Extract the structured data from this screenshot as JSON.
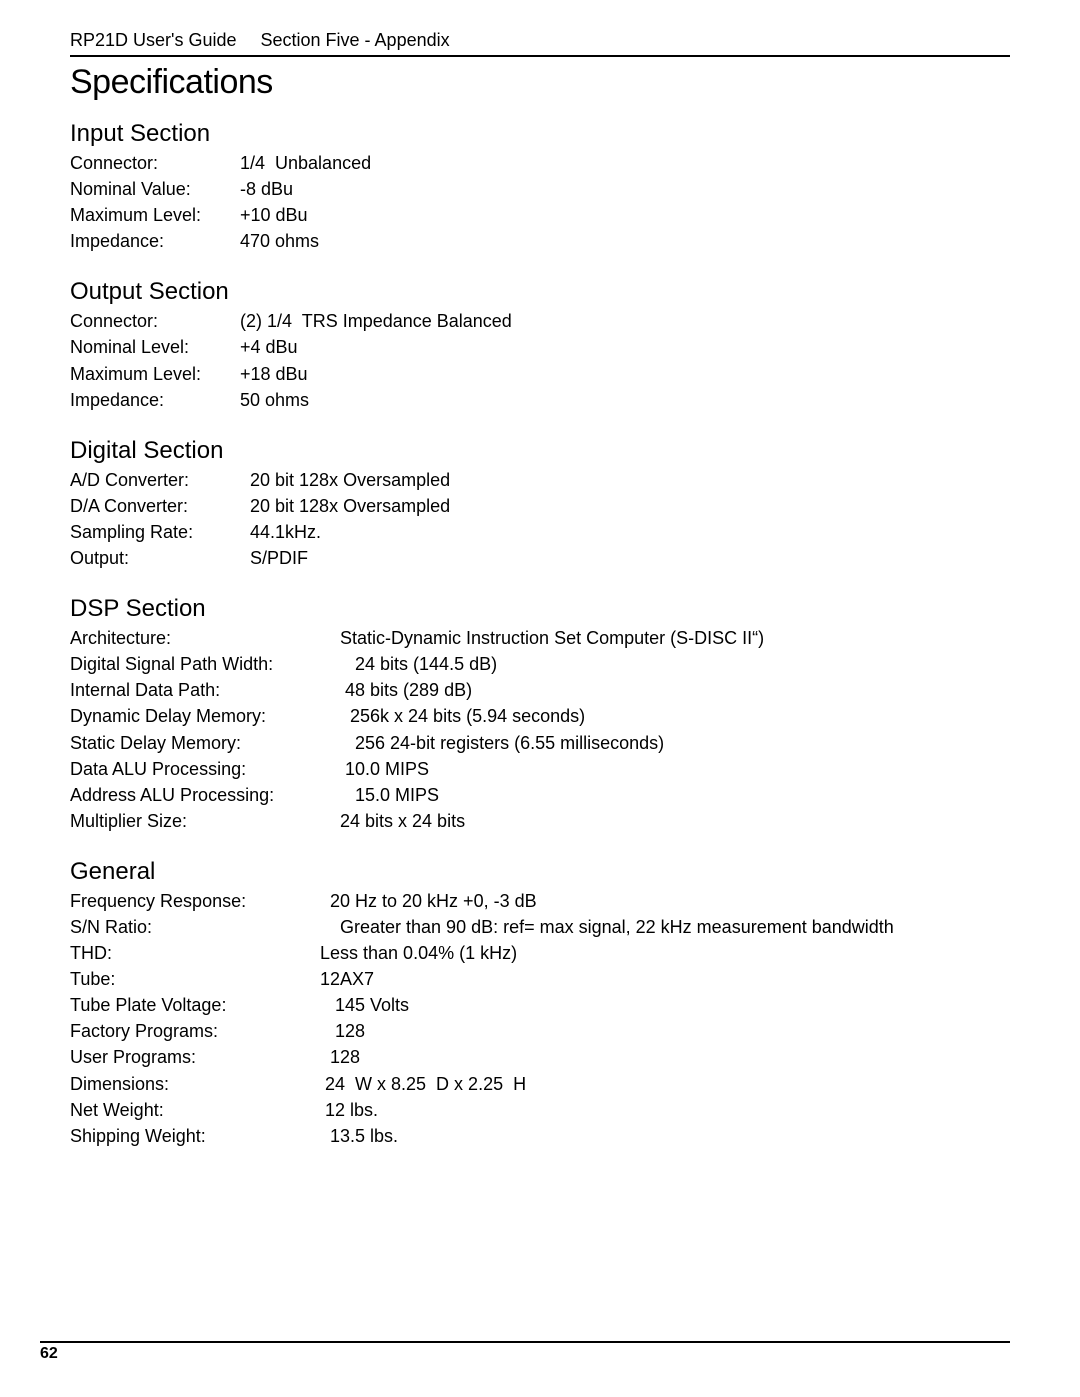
{
  "header": {
    "left": "RP21D User's Guide",
    "right": "Section Five - Appendix"
  },
  "title": "Specifications",
  "sections": [
    {
      "heading": "Input Section",
      "colsClass": "cols-input",
      "rows": [
        {
          "label": "Connector:",
          "value": "1/4  Unbalanced"
        },
        {
          "label": "Nominal Value:",
          "value": "-8 dBu"
        },
        {
          "label": "Maximum Level:",
          "value": "+10 dBu"
        },
        {
          "label": "Impedance:",
          "value": "470 ohms"
        }
      ]
    },
    {
      "heading": "Output Section",
      "colsClass": "cols-output",
      "rows": [
        {
          "label": "Connector:",
          "value": "(2) 1/4  TRS Impedance Balanced"
        },
        {
          "label": "Nominal Level:",
          "value": "+4 dBu"
        },
        {
          "label": "Maximum Level:",
          "value": "+18 dBu"
        },
        {
          "label": "Impedance:",
          "value": "50 ohms"
        }
      ]
    },
    {
      "heading": "Digital Section",
      "colsClass": "cols-digital",
      "rows": [
        {
          "label": "A/D Converter:",
          "value": "20 bit 128x Oversampled"
        },
        {
          "label": "D/A Converter:",
          "value": "20 bit 128x Oversampled"
        },
        {
          "label": "Sampling Rate:",
          "value": "44.1kHz."
        },
        {
          "label": "Output:",
          "value": "S/PDIF"
        }
      ]
    },
    {
      "heading": "DSP Section",
      "colsClass": "cols-dsp",
      "rows": [
        {
          "label": "Architecture:",
          "value": "Static-Dynamic Instruction Set Computer (S-DISC II“)"
        },
        {
          "label": "Digital Signal Path Width:",
          "value": "   24 bits (144.5 dB)"
        },
        {
          "label": "Internal Data Path:",
          "value": " 48 bits (289 dB)"
        },
        {
          "label": "Dynamic Delay Memory:",
          "value": "  256k x 24 bits (5.94 seconds)"
        },
        {
          "label": "Static Delay Memory:",
          "value": "   256 24-bit registers (6.55 milliseconds)"
        },
        {
          "label": "Data ALU Processing:",
          "value": " 10.0 MIPS"
        },
        {
          "label": "Address ALU Processing:",
          "value": "   15.0 MIPS"
        },
        {
          "label": "Multiplier Size:",
          "value": "24 bits x 24 bits"
        }
      ]
    },
    {
      "heading": "General",
      "colsClass": "cols-general",
      "rows": [
        {
          "label": "Frequency Response:",
          "value": "  20 Hz to 20 kHz +0, -3 dB"
        },
        {
          "label": "S/N Ratio:",
          "value": "    Greater than 90 dB: ref= max signal, 22 kHz measurement bandwidth"
        },
        {
          "label": "THD:",
          "value": "Less than 0.04% (1 kHz)"
        },
        {
          "label": "Tube:",
          "value": "12AX7"
        },
        {
          "label": "Tube Plate Voltage:",
          "value": "   145 Volts"
        },
        {
          "label": "Factory Programs:",
          "value": "   128"
        },
        {
          "label": "User Programs:",
          "value": "  128"
        },
        {
          "label": "Dimensions:",
          "value": " 24  W x 8.25  D x 2.25  H"
        },
        {
          "label": "Net Weight:",
          "value": " 12 lbs."
        },
        {
          "label": "Shipping Weight:",
          "value": "  13.5 lbs."
        }
      ]
    }
  ],
  "pageNumber": "62",
  "style": {
    "text_color": "#000000",
    "background_color": "#ffffff",
    "rule_color": "#000000",
    "title_fontsize": 34,
    "heading_fontsize": 24,
    "body_fontsize": 18,
    "header_fontsize": 18,
    "page_number_fontsize": 16
  }
}
